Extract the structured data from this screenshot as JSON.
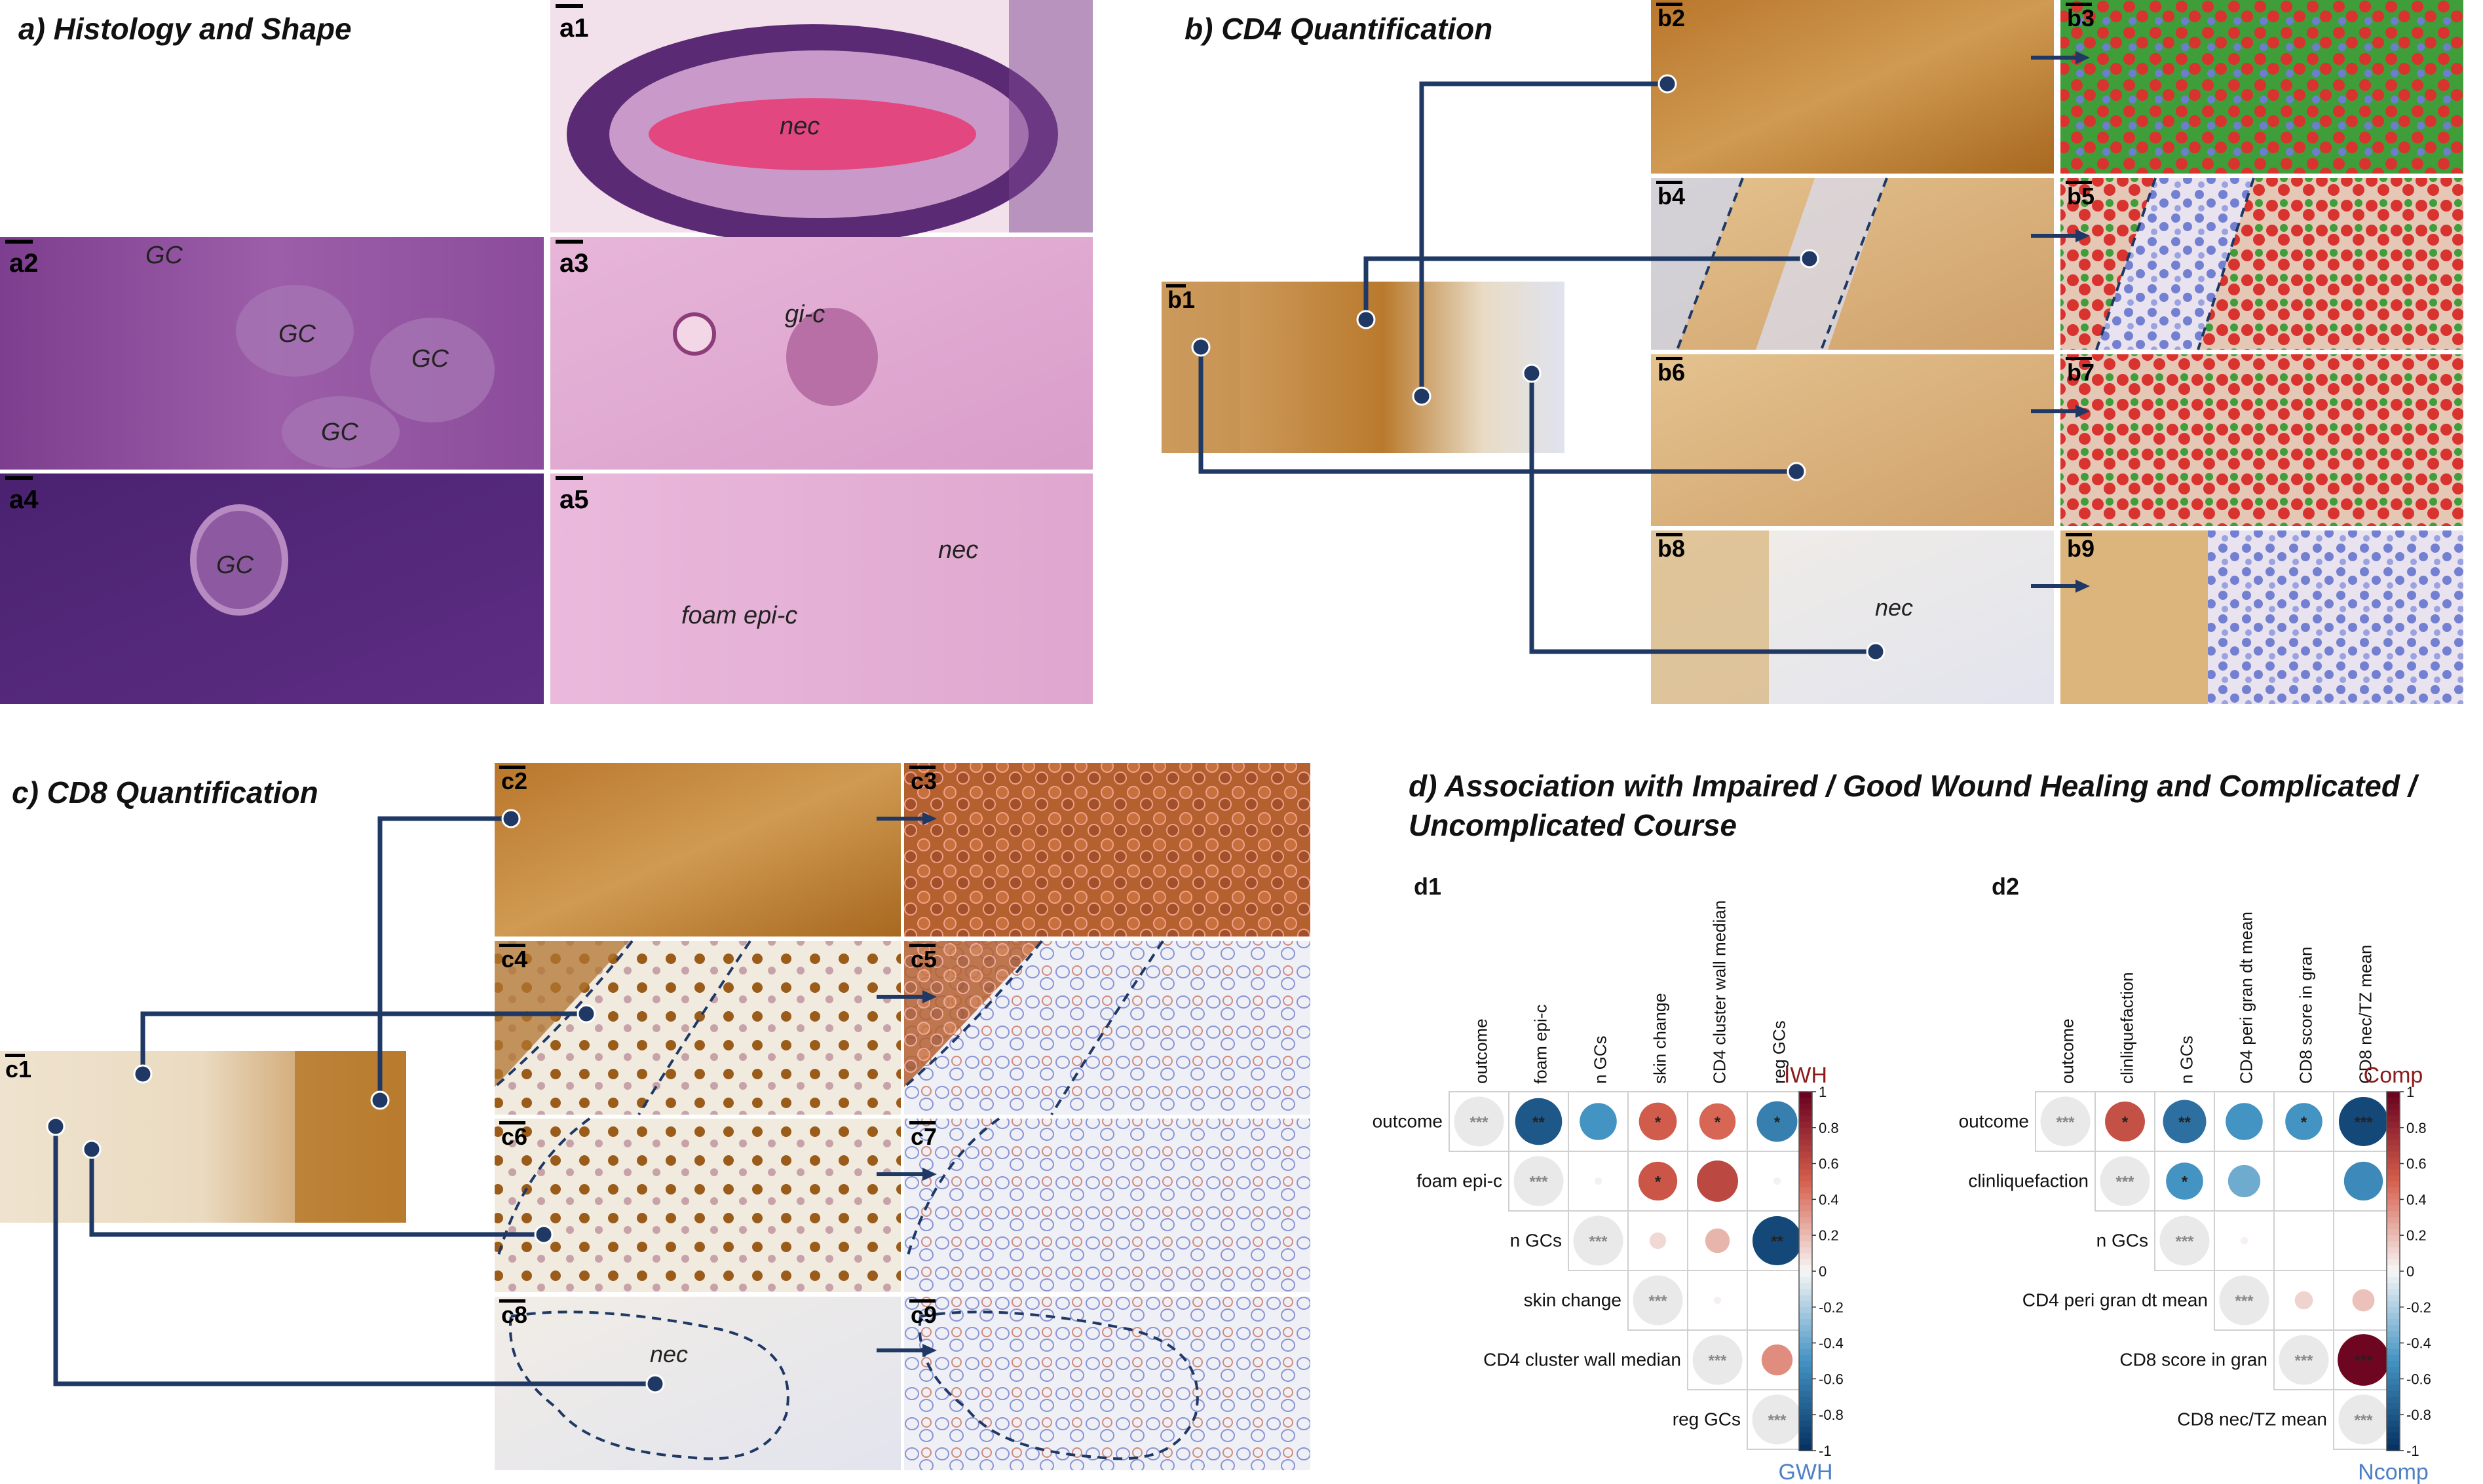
{
  "panels": {
    "a": {
      "title": "a) Histology and Shape",
      "sub": [
        "a1",
        "a2",
        "a3",
        "a4",
        "a5"
      ],
      "labels": {
        "nec_a1": "nec",
        "gc": "GC",
        "gic": "gi-c",
        "nec_a5": "nec",
        "foam": "foam epi-c"
      }
    },
    "b": {
      "title": "b) CD4 Quantification",
      "sub": [
        "b1",
        "b2",
        "b3",
        "b4",
        "b5",
        "b6",
        "b7",
        "b8",
        "b9"
      ],
      "nec": "nec"
    },
    "c": {
      "title": "c) CD8 Quantification",
      "sub": [
        "c1",
        "c2",
        "c3",
        "c4",
        "c5",
        "c6",
        "c7",
        "c8",
        "c9"
      ],
      "nec": "nec"
    },
    "d": {
      "title_line1": "d) Association with Impaired / Good Wound Healing and Complicated /",
      "title_line2": "Uncomplicated Course",
      "colorbar_ticks": [
        "1",
        "0.8",
        "0.6",
        "0.4",
        "0.2",
        "0",
        "-0.2",
        "-0.4",
        "-0.6",
        "-0.8",
        "-1"
      ],
      "d1": {
        "label": "d1",
        "top_label": "IWH",
        "bottom_label": "GWH",
        "vars": [
          "outcome",
          "foam epi-c",
          "n GCs",
          "skin change",
          "CD4 cluster wall median",
          "reg GCs"
        ],
        "matrix": [
          [
            1.0,
            -0.8,
            -0.5,
            0.52,
            0.48,
            -0.6
          ],
          [
            null,
            1.0,
            0.02,
            0.55,
            0.62,
            0.02
          ],
          [
            null,
            null,
            1.0,
            0.1,
            0.22,
            -0.88
          ],
          [
            null,
            null,
            null,
            1.0,
            0.02,
            null
          ],
          [
            null,
            null,
            null,
            null,
            1.0,
            0.35
          ],
          [
            null,
            null,
            null,
            null,
            null,
            1.0
          ]
        ],
        "stars": [
          [
            "***",
            "**",
            "",
            "*",
            "*",
            "*"
          ],
          [
            "",
            "***",
            "",
            "*",
            "",
            ""
          ],
          [
            "",
            "",
            "***",
            "",
            "",
            "**"
          ],
          [
            "",
            "",
            "",
            "***",
            "",
            ""
          ],
          [
            "",
            "",
            "",
            "",
            "***",
            ""
          ],
          [
            "",
            "",
            "",
            "",
            "",
            "***"
          ]
        ]
      },
      "d2": {
        "label": "d2",
        "top_label": "Comp",
        "bottom_label": "Ncomp",
        "vars": [
          "outcome",
          "clinliquefaction",
          "n GCs",
          "CD4 peri gran dt mean",
          "CD8 score in gran",
          "CD8 nec/TZ mean"
        ],
        "matrix": [
          [
            1.0,
            0.58,
            -0.68,
            -0.5,
            -0.5,
            -0.88
          ],
          [
            null,
            1.0,
            -0.5,
            -0.38,
            null,
            -0.55
          ],
          [
            null,
            null,
            1.0,
            0.02,
            null,
            null
          ],
          [
            null,
            null,
            null,
            1.0,
            0.12,
            0.18
          ],
          [
            null,
            null,
            null,
            null,
            1.0,
            0.97
          ],
          [
            null,
            null,
            null,
            null,
            null,
            1.0
          ]
        ],
        "stars": [
          [
            "***",
            "*",
            "**",
            "",
            "*",
            "***"
          ],
          [
            "",
            "***",
            "*",
            "",
            "",
            ""
          ],
          [
            "",
            "",
            "***",
            "",
            "",
            ""
          ],
          [
            "",
            "",
            "",
            "***",
            "",
            ""
          ],
          [
            "",
            "",
            "",
            "",
            "***",
            "***"
          ],
          [
            "",
            "",
            "",
            "",
            "",
            "***"
          ]
        ]
      }
    }
  },
  "colors": {
    "navy": "#1f3864",
    "iwh": "#8b1a1a",
    "gwh": "#4f7fc4"
  }
}
